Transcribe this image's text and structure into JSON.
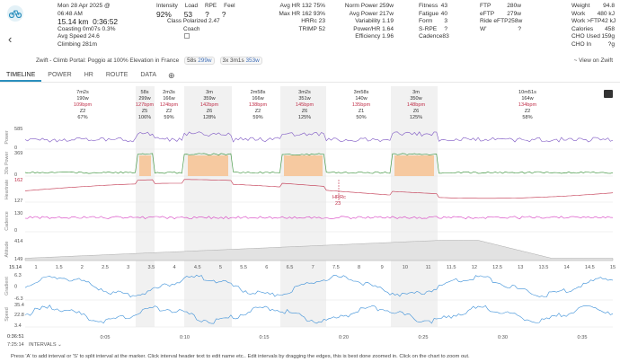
{
  "header": {
    "date": "Mon 28 Apr 2025 @ 06:48 AM",
    "distance": "15.14 km",
    "moving_time": "0:36:52",
    "coasting_label": "Coasting",
    "coasting_value": "0m07s 0.3%",
    "avg_speed_label": "Avg Speed",
    "avg_speed_value": "24.6",
    "climbing_label": "Climbing",
    "climbing_value": "281m",
    "intensity_label": "Intensity",
    "intensity_value": "92%",
    "load_label": "Load",
    "load_value": "53",
    "rpe_label": "RPE",
    "rpe_value": "?",
    "feel_label": "Feel",
    "feel_value": "?",
    "class_label": "Class",
    "class_value": "Polarized 2.47",
    "coach_label": "Coach",
    "avg_hr": "Avg HR 132 75%",
    "max_hr": "Max HR 162 93%",
    "hrrc": "HRRc 23",
    "trimp": "TRIMP 52",
    "norm_power": "Norm Power 259w",
    "avg_power": "Avg Power 217w",
    "variability": "Variability 1.19",
    "power_hr": "Power/HR 1.64",
    "efficiency": "Efficiency 1.96",
    "fitness_label": "Fitness",
    "fitness_value": "43",
    "fatigue_label": "Fatigue",
    "fatigue_value": "40",
    "form_label": "Form",
    "form_value": "3",
    "srpe_label": "S-RPE",
    "srpe_value": "?",
    "cadence_label": "Cadence",
    "cadence_value": "83",
    "ftp_label": "FTP",
    "ftp_value": "280w",
    "eftp_label": "eFTP",
    "eftp_value": "279w",
    "ride_eftp_label": "Ride eFTP",
    "ride_eftp_value": "258w",
    "wprime_label": "W'",
    "wprime_value": "?",
    "weight_label": "Weight",
    "weight_value": "94.8",
    "work_label": "Work",
    "work_value": "480 kJ",
    "work_ftp_label": "Work >FTP",
    "work_ftp_value": "42 kJ",
    "calories_label": "Calories",
    "calories_value": "458",
    "cho_used_label": "CHO Used",
    "cho_used_value": "159g",
    "cho_in_label": "CHO In",
    "cho_in_value": "?g"
  },
  "subheader": {
    "title": "Zwift - Climb Portal: Poggio at 100% Elevation in France",
    "pill1_a": "58s",
    "pill1_b": "299w",
    "pill2_a": "3x",
    "pill2_b": "3m1s",
    "pill2_c": "353w",
    "view_link": "~ View on Zwift"
  },
  "tabs": [
    "TIMELINE",
    "POWER",
    "HR",
    "ROUTE",
    "DATA"
  ],
  "intervals": [
    {
      "l1": "7m2s",
      "l2": "190w",
      "l3": "109bpm",
      "l4": "Z2",
      "l5": "67%"
    },
    {
      "l1": "58s",
      "l2": "299w",
      "l3": "127bpm",
      "l4": "Z5",
      "l5": "106%"
    },
    {
      "l1": "2m3s",
      "l2": "166w",
      "l3": "124bpm",
      "l4": "Z2",
      "l5": "59%"
    },
    {
      "l1": "3m",
      "l2": "359w",
      "l3": "142bpm",
      "l4": "Z6",
      "l5": "128%"
    },
    {
      "l1": "2m58s",
      "l2": "166w",
      "l3": "138bpm",
      "l4": "Z2",
      "l5": "59%"
    },
    {
      "l1": "3m2s",
      "l2": "351w",
      "l3": "145bpm",
      "l4": "Z6",
      "l5": "125%"
    },
    {
      "l1": "3m58s",
      "l2": "140w",
      "l3": "135bpm",
      "l4": "Z1",
      "l5": "50%"
    },
    {
      "l1": "3m",
      "l2": "350w",
      "l3": "148bpm",
      "l4": "Z6",
      "l5": "125%"
    },
    {
      "l1": "10m51s",
      "l2": "164w",
      "l3": "134bpm",
      "l4": "Z2",
      "l5": "58%"
    }
  ],
  "chart_labels": {
    "power": "Power",
    "pbest": "30s Power",
    "heartrate": "Heartrate",
    "cadence": "Cadence",
    "altitude": "Altitude",
    "gradient": "Gradient",
    "speed": "Speed",
    "power_ticks": [
      "585",
      "0"
    ],
    "pbest_ticks": [
      "369",
      "0"
    ],
    "hr_ticks": [
      "162",
      "127"
    ],
    "cad_ticks": [
      "130",
      "0"
    ],
    "alt_ticks": [
      "414",
      "149"
    ],
    "grad_ticks": [
      "6.3",
      "0",
      "-6.3"
    ],
    "speed_ticks": [
      "35.4",
      "22.8",
      "3.4"
    ],
    "hrrc_label": "HRRc",
    "hrrc_value": "23",
    "km_start": "15.14",
    "km_marks": [
      "1",
      "1.5",
      "2",
      "2.5",
      "3",
      "3.5",
      "4",
      "4.5",
      "5",
      "5.5",
      "6",
      "6.5",
      "7",
      "7.5",
      "8",
      "9",
      "10",
      "11",
      "11.5",
      "12",
      "12.5",
      "13",
      "13.5",
      "14",
      "14.5",
      "15"
    ],
    "time_marks": [
      "0:05",
      "0:10",
      "0:15",
      "0:20",
      "0:25",
      "0:30",
      "0:35"
    ],
    "time_start": "0:36:51",
    "time_sub": "7:25:14",
    "intervals_dropdown": "INTERVALS"
  },
  "footer": "Press 'A' to add interval or 'S' to split interval at the marker. Click interval header text to edit name etc.. Edit intervals by dragging the edges, this is best done zoomed in. Click on the chart to zoom out.",
  "colors": {
    "accent": "#2b8fbd",
    "power": "#7c55c3",
    "hr": "#c0304a",
    "cadence": "#d63cc0",
    "altitude": "#9a9a9a",
    "gradient": "#3a8fd8",
    "speed": "#3a8fd8"
  }
}
